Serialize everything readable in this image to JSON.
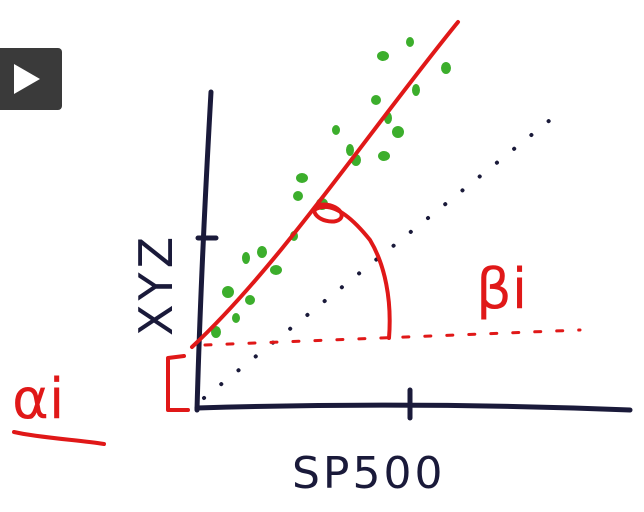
{
  "player": {
    "play_icon": "play-icon"
  },
  "diagram": {
    "x_axis_label": "SP500",
    "y_axis_label": "XYZ",
    "alpha_label": "αi",
    "beta_label": "βi",
    "colors": {
      "ink": "#1a1a3a",
      "fit_line": "#e01818",
      "points": "#3cae2c",
      "reference": "#1a1a3a"
    }
  }
}
